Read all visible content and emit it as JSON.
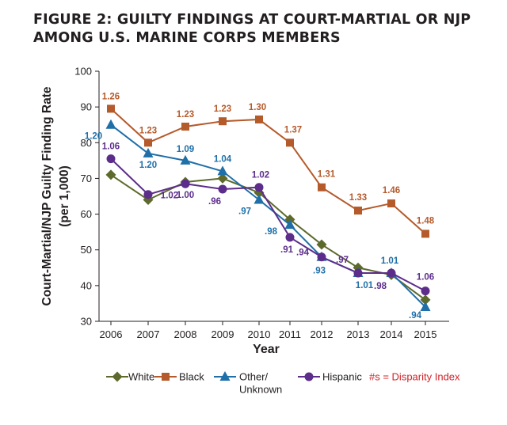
{
  "title_lines": [
    "FIGURE 2: GUILTY FINDINGS AT COURT-MARTIAL OR NJP",
    "AMONG U.S. MARINE CORPS MEMBERS"
  ],
  "chart_data": {
    "type": "line",
    "xlabel": "Year",
    "ylabel_lines": [
      "Court-Martial/NJP Guilty Finding Rate",
      "(per 1,000)"
    ],
    "x": [
      2006,
      2007,
      2008,
      2009,
      2010,
      2011,
      2012,
      2013,
      2014,
      2015
    ],
    "ylim": [
      30,
      100
    ],
    "yticks": [
      30,
      40,
      50,
      60,
      70,
      80,
      90,
      100
    ],
    "grid": false,
    "legend_position": "bottom",
    "legend_note": "#s = Disparity Index",
    "legend_note_color": "#d2232a",
    "series": [
      {
        "name": "White",
        "color": "#5d6a2c",
        "marker": "diamond",
        "values": [
          71,
          64,
          69,
          70,
          66,
          58.5,
          51.5,
          45,
          43,
          36
        ],
        "labels": [
          "",
          "",
          "",
          "",
          "",
          "",
          "",
          "",
          "",
          ""
        ]
      },
      {
        "name": "Black",
        "color": "#b55a2b",
        "marker": "square",
        "values": [
          89.5,
          80,
          84.5,
          86,
          86.5,
          80,
          67.5,
          61,
          63,
          54.5
        ],
        "labels": [
          "1.26",
          "1.23",
          "1.23",
          "1.23",
          "1.30",
          "1.37",
          "1.31",
          "1.33",
          "1.46",
          "1.48"
        ]
      },
      {
        "name": "Other/ Unknown",
        "legend_lines": [
          "Other/",
          "Unknown"
        ],
        "color": "#1f6fa8",
        "marker": "triangle",
        "values": [
          85,
          77,
          75,
          72,
          64,
          57,
          48,
          43.5,
          43.5,
          34
        ],
        "labels": [
          "1.20",
          "1.20",
          "1.09",
          "1.04",
          ".97",
          ".98",
          ".93",
          "1.01",
          "1.01",
          ".94"
        ]
      },
      {
        "name": "Hispanic",
        "color": "#5c2d8a",
        "marker": "circle",
        "values": [
          75.5,
          65.5,
          68.5,
          67,
          67.5,
          53.5,
          48,
          43.5,
          43.5,
          38.5
        ],
        "labels": [
          "1.06",
          "1.02",
          "1.00",
          ".96",
          "1.02",
          ".91",
          ".94",
          ".97",
          ".98",
          "1.06"
        ]
      }
    ]
  }
}
